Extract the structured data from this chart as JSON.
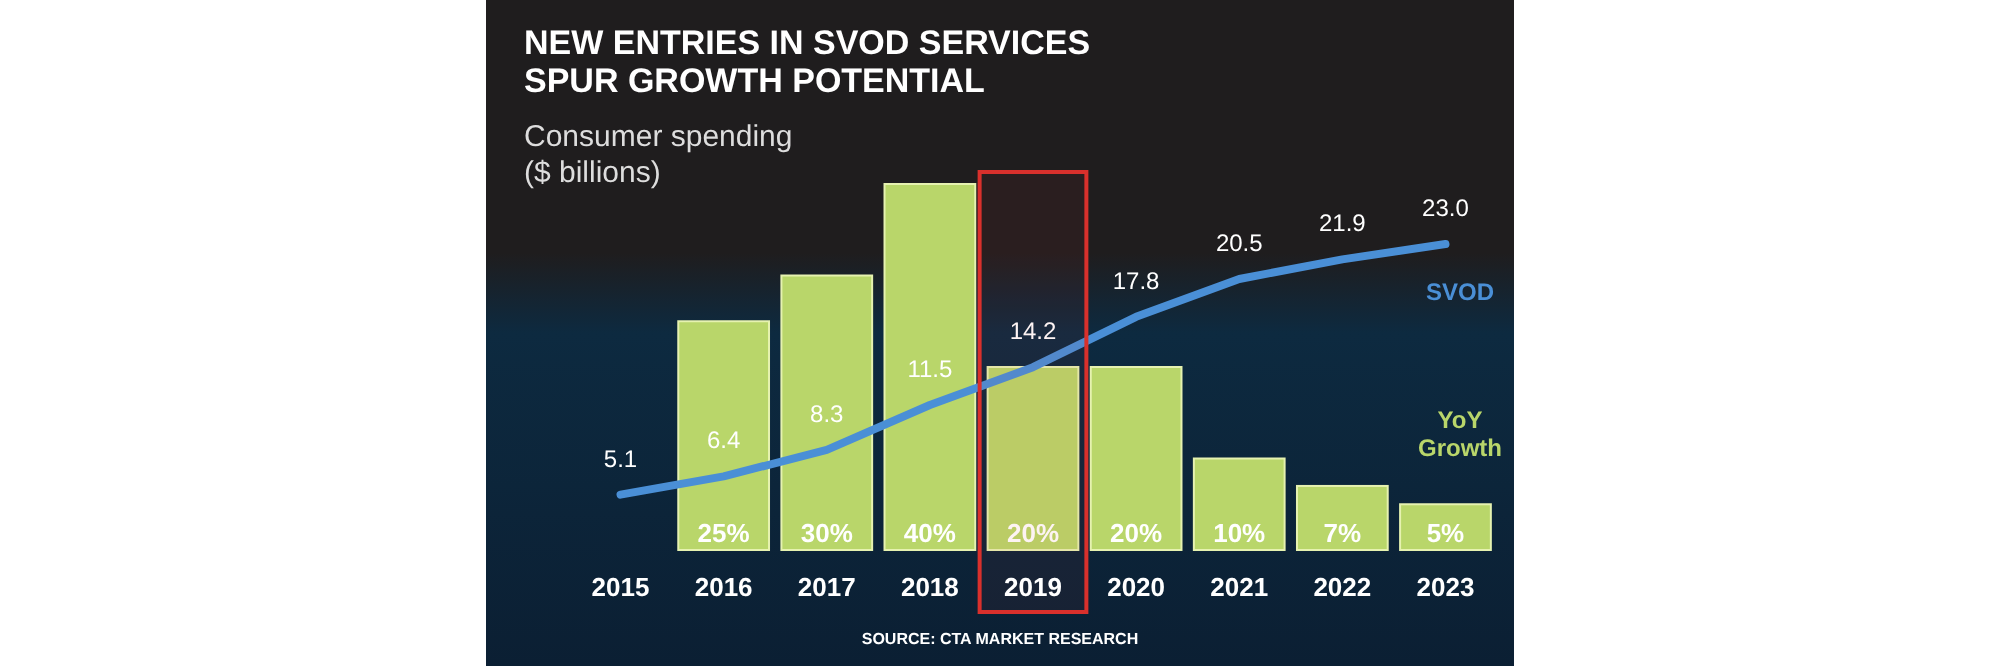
{
  "chart_data": {
    "type": "bar",
    "title": "NEW ENTRIES IN SVOD SERVICES\nSPUR GROWTH POTENTIAL",
    "subtitle": "Consumer spending\n($ billions)",
    "categories": [
      "2015",
      "2016",
      "2017",
      "2018",
      "2019",
      "2020",
      "2021",
      "2022",
      "2023"
    ],
    "series": [
      {
        "name": "YoY Growth",
        "color": "#b9d66a",
        "values": [
          null,
          25,
          30,
          40,
          20,
          20,
          10,
          7,
          5
        ],
        "value_labels": [
          null,
          "25%",
          "30%",
          "40%",
          "20%",
          "20%",
          "10%",
          "7%",
          "5%"
        ]
      },
      {
        "type": "line",
        "name": "SVOD",
        "color": "#4a8fd6",
        "axis": "y2",
        "values": [
          5.1,
          6.4,
          8.3,
          11.5,
          14.2,
          17.8,
          20.5,
          21.9,
          23.0
        ],
        "value_labels": [
          "5.1",
          "6.4",
          "8.3",
          "11.5",
          "14.2",
          "17.8",
          "20.5",
          "21.9",
          "23.0"
        ]
      }
    ],
    "bands": [
      {
        "axis": "x",
        "from": "2019",
        "to": "2019",
        "color": "#d9302c"
      }
    ],
    "legend": false,
    "annotations": [
      "SOURCE: CTA MARKET RESEARCH"
    ]
  }
}
